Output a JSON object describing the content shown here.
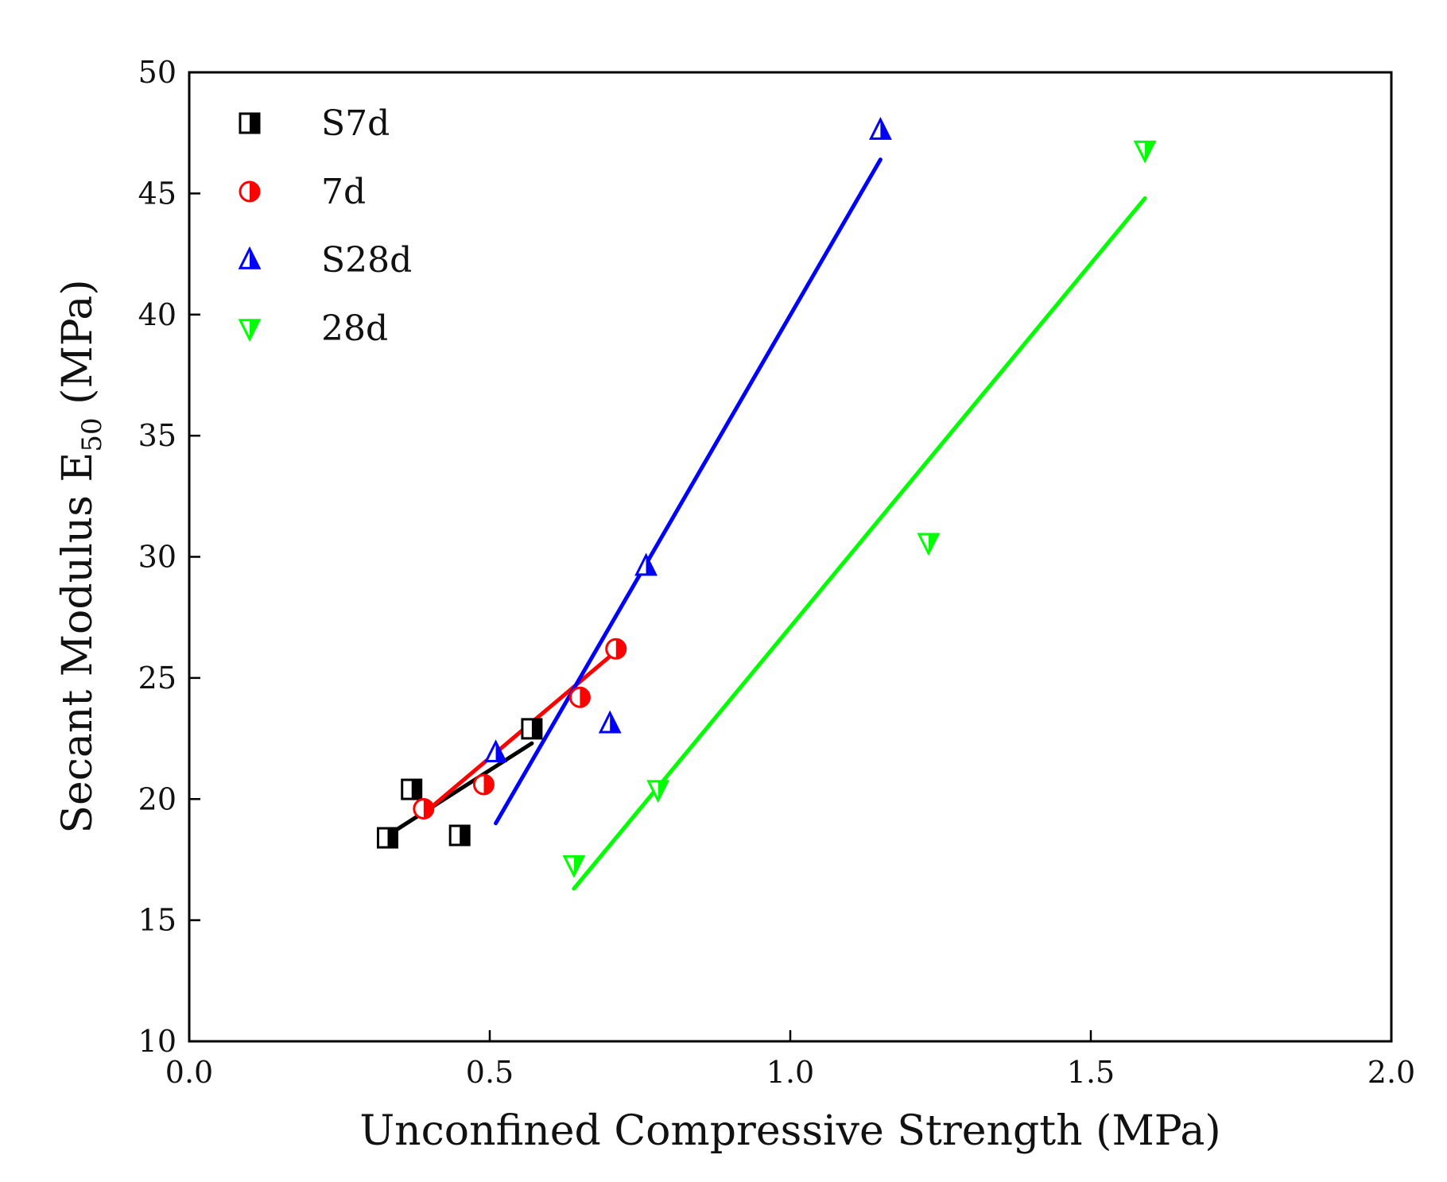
{
  "chart_data": {
    "type": "scatter",
    "title": "",
    "xlabel": "Unconfined Compressive Strength (MPa)",
    "ylabel_main": "Secant Modulus E",
    "ylabel_sub": "50",
    "ylabel_unit": " (MPa)",
    "xlim": [
      0.0,
      2.0
    ],
    "ylim": [
      10,
      50
    ],
    "xticks": [
      0.0,
      0.5,
      1.0,
      1.5,
      2.0
    ],
    "xtick_labels": [
      "0.0",
      "0.5",
      "1.0",
      "1.5",
      "2.0"
    ],
    "yticks": [
      10,
      15,
      20,
      25,
      30,
      35,
      40,
      45,
      50
    ],
    "ytick_labels": [
      "10",
      "15",
      "20",
      "25",
      "30",
      "35",
      "40",
      "45",
      "50"
    ],
    "grid": false,
    "legend_position": "top-left",
    "series": [
      {
        "name": "S7d",
        "marker": "half-square",
        "color": "#000000",
        "points": [
          [
            0.33,
            18.4
          ],
          [
            0.37,
            20.4
          ],
          [
            0.45,
            18.5
          ],
          [
            0.57,
            22.9
          ]
        ],
        "fit": [
          [
            0.33,
            18.5
          ],
          [
            0.57,
            22.3
          ]
        ]
      },
      {
        "name": "7d",
        "marker": "half-circle",
        "color": "#ff0000",
        "points": [
          [
            0.39,
            19.6
          ],
          [
            0.49,
            20.6
          ],
          [
            0.65,
            24.2
          ],
          [
            0.71,
            26.2
          ]
        ],
        "fit": [
          [
            0.39,
            19.4
          ],
          [
            0.71,
            26.1
          ]
        ]
      },
      {
        "name": "S28d",
        "marker": "half-triangle-up",
        "color": "#0000ff",
        "points": [
          [
            0.51,
            21.9
          ],
          [
            0.7,
            23.1
          ],
          [
            0.76,
            29.6
          ],
          [
            1.15,
            47.6
          ]
        ],
        "fit": [
          [
            0.51,
            19.0
          ],
          [
            1.15,
            46.4
          ]
        ]
      },
      {
        "name": "28d",
        "marker": "half-triangle-down",
        "color": "#00ff00",
        "points": [
          [
            0.64,
            17.3
          ],
          [
            0.78,
            20.4
          ],
          [
            1.23,
            30.6
          ],
          [
            1.59,
            46.8
          ]
        ],
        "fit": [
          [
            0.64,
            16.3
          ],
          [
            1.59,
            44.8
          ]
        ]
      }
    ]
  }
}
